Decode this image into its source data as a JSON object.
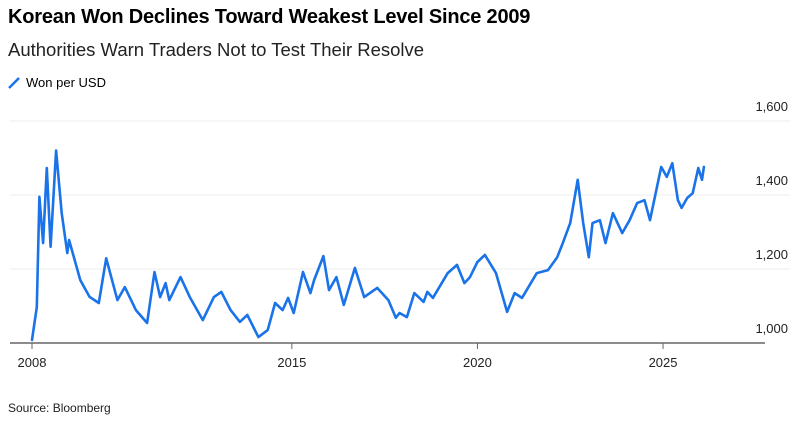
{
  "header": {
    "title": "Korean Won Declines Toward Weakest Level Since 2009",
    "subtitle": "Authorities Warn Traders Not to Test Their Resolve"
  },
  "footer": {
    "source": "Source: Bloomberg"
  },
  "chart_data": {
    "type": "line",
    "title": "Korean Won Declines Toward Weakest Level Since 2009",
    "subtitle": "Authorities Warn Traders Not to Test Their Resolve",
    "xlabel": "",
    "ylabel": "",
    "xlim": [
      2008,
      2027.5
    ],
    "ylim": [
      1000,
      1600
    ],
    "x_ticks": [
      2008,
      2015,
      2020,
      2025
    ],
    "x_tick_labels": [
      "2008",
      "2015",
      "2020",
      "2025"
    ],
    "y_ticks": [
      1000,
      1200,
      1400,
      1600
    ],
    "y_tick_labels": [
      "1,000",
      "1,200",
      "1,400",
      "1,600"
    ],
    "y_axis_side": "right",
    "grid": "horizontal",
    "legend_placement": "top-left",
    "colors": {
      "line": "#1a73e8",
      "grid": "#eeeeee",
      "axis": "#666666"
    },
    "series": [
      {
        "name": "Won per USD",
        "x": [
          2008.0,
          2008.13,
          2008.2,
          2008.3,
          2008.4,
          2008.5,
          2008.65,
          2008.8,
          2008.95,
          2009.0,
          2009.3,
          2009.55,
          2009.8,
          2010.0,
          2010.3,
          2010.5,
          2010.8,
          2011.1,
          2011.3,
          2011.45,
          2011.6,
          2011.7,
          2012.0,
          2012.25,
          2012.6,
          2012.9,
          2013.1,
          2013.35,
          2013.6,
          2013.8,
          2014.1,
          2014.35,
          2014.55,
          2014.75,
          2014.9,
          2015.05,
          2015.3,
          2015.5,
          2015.6,
          2015.85,
          2016.0,
          2016.2,
          2016.4,
          2016.7,
          2016.95,
          2017.3,
          2017.6,
          2017.8,
          2017.9,
          2018.1,
          2018.3,
          2018.55,
          2018.65,
          2018.8,
          2019.2,
          2019.45,
          2019.65,
          2019.8,
          2020.0,
          2020.2,
          2020.5,
          2020.8,
          2021.0,
          2021.2,
          2021.6,
          2021.9,
          2022.15,
          2022.3,
          2022.5,
          2022.7,
          2022.85,
          2023.0,
          2023.1,
          2023.3,
          2023.45,
          2023.65,
          2023.9,
          2024.1,
          2024.3,
          2024.5,
          2024.65,
          2024.95,
          2025.1,
          2025.25,
          2025.4,
          2025.5,
          2025.65,
          2025.8,
          2025.95,
          2026.05,
          2026.1
        ],
        "values": [
          1008,
          1097,
          1395,
          1270,
          1473,
          1260,
          1520,
          1351,
          1243,
          1278,
          1170,
          1125,
          1108,
          1229,
          1116,
          1151,
          1089,
          1054,
          1192,
          1124,
          1162,
          1116,
          1178,
          1124,
          1062,
          1124,
          1138,
          1089,
          1057,
          1076,
          1016,
          1035,
          1108,
          1089,
          1122,
          1081,
          1192,
          1135,
          1170,
          1235,
          1143,
          1178,
          1103,
          1203,
          1124,
          1149,
          1116,
          1068,
          1081,
          1070,
          1135,
          1111,
          1138,
          1122,
          1189,
          1211,
          1162,
          1178,
          1219,
          1238,
          1189,
          1084,
          1135,
          1122,
          1189,
          1197,
          1232,
          1270,
          1324,
          1441,
          1324,
          1232,
          1324,
          1332,
          1270,
          1351,
          1297,
          1332,
          1378,
          1386,
          1332,
          1476,
          1449,
          1486,
          1386,
          1365,
          1392,
          1405,
          1473,
          1441,
          1476
        ]
      }
    ]
  }
}
